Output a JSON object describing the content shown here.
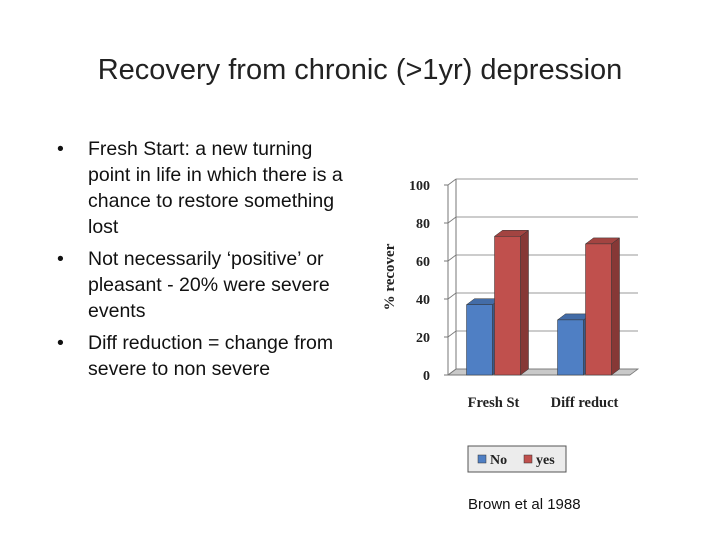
{
  "slide": {
    "title": "Recovery from chronic (>1yr) depression",
    "bullets": [
      "Fresh Start: a new turning point in life in which there is a chance to restore something lost",
      "Not necessarily ‘positive’ or pleasant - 20% were severe events",
      "Diff reduction = change from severe to non severe"
    ],
    "citation": "Brown et al 1988"
  },
  "chart_data": {
    "type": "bar",
    "style": "3d-clustered",
    "categories": [
      "Fresh St",
      "Diff reduct"
    ],
    "series": [
      {
        "name": "No",
        "values": [
          37,
          29
        ],
        "color": "#4f7fc4"
      },
      {
        "name": "yes",
        "values": [
          73,
          69
        ],
        "color": "#c0504d"
      }
    ],
    "title": "",
    "xlabel": "",
    "ylabel": "% recover",
    "ylim": [
      0,
      100
    ],
    "yticks": [
      0,
      20,
      40,
      60,
      80,
      100
    ],
    "grid": true,
    "legend": "bottom"
  }
}
